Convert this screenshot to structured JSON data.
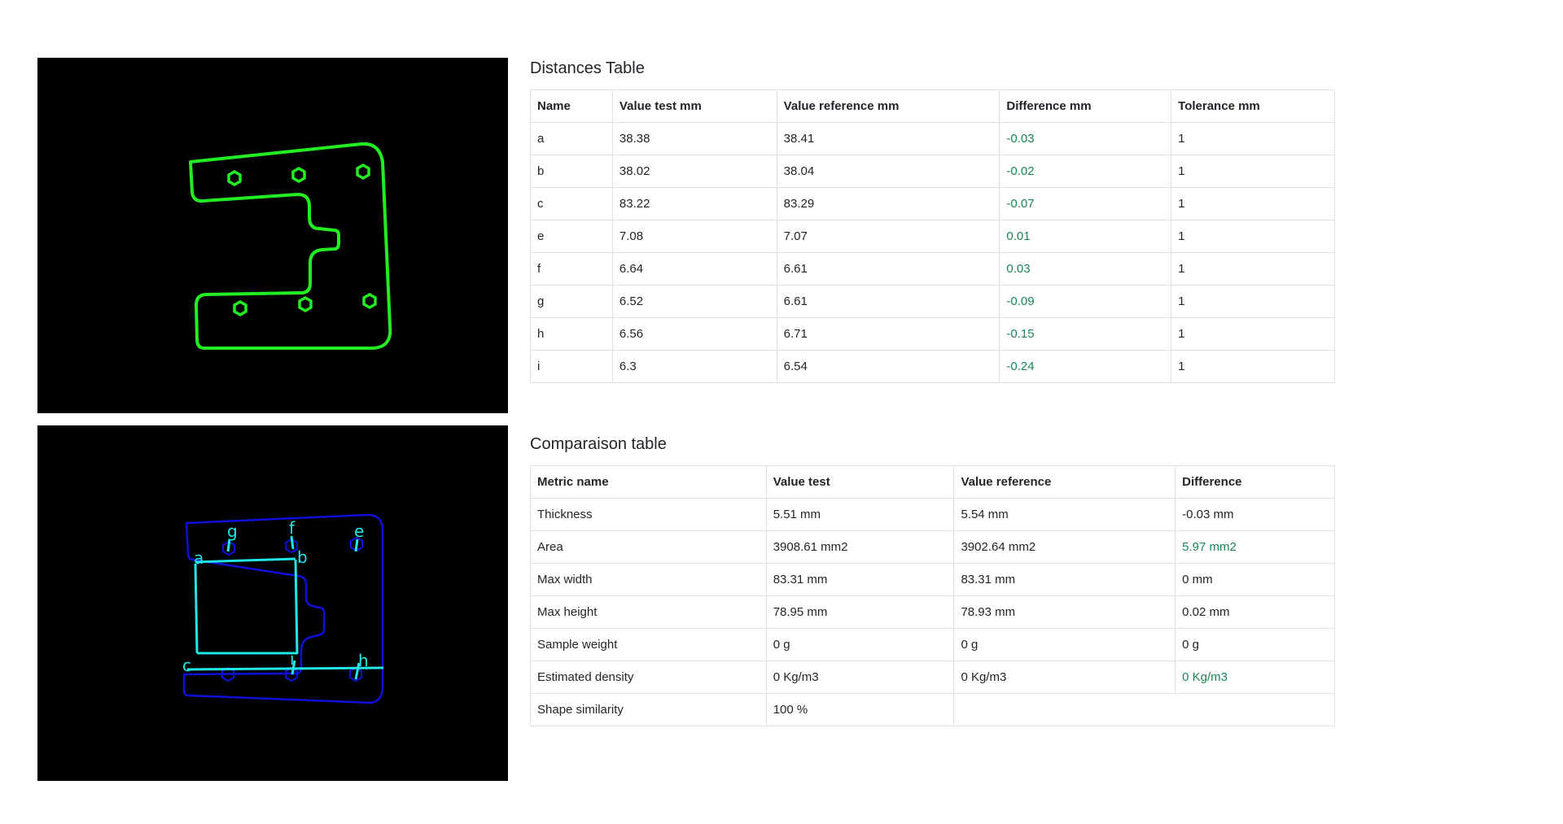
{
  "colors": {
    "contour_green": "#22ee22",
    "contour_blue": "#1010dd",
    "measure_cyan": "#22e5e5",
    "positive_green": "#198754"
  },
  "images": {
    "bottom_labels": [
      "a",
      "b",
      "c",
      "e",
      "f",
      "g",
      "h",
      "i"
    ]
  },
  "distances": {
    "title": "Distances Table",
    "headers": [
      "Name",
      "Value test mm",
      "Value reference mm",
      "Difference mm",
      "Tolerance mm"
    ],
    "rows": [
      {
        "name": "a",
        "test": "38.38",
        "ref": "38.41",
        "diff": "-0.03",
        "tol": "1"
      },
      {
        "name": "b",
        "test": "38.02",
        "ref": "38.04",
        "diff": "-0.02",
        "tol": "1"
      },
      {
        "name": "c",
        "test": "83.22",
        "ref": "83.29",
        "diff": "-0.07",
        "tol": "1"
      },
      {
        "name": "e",
        "test": "7.08",
        "ref": "7.07",
        "diff": "0.01",
        "tol": "1"
      },
      {
        "name": "f",
        "test": "6.64",
        "ref": "6.61",
        "diff": "0.03",
        "tol": "1"
      },
      {
        "name": "g",
        "test": "6.52",
        "ref": "6.61",
        "diff": "-0.09",
        "tol": "1"
      },
      {
        "name": "h",
        "test": "6.56",
        "ref": "6.71",
        "diff": "-0.15",
        "tol": "1"
      },
      {
        "name": "i",
        "test": "6.3",
        "ref": "6.54",
        "diff": "-0.24",
        "tol": "1"
      }
    ]
  },
  "comparison": {
    "title": "Comparaison table",
    "headers": [
      "Metric name",
      "Value test",
      "Value reference",
      "Difference"
    ],
    "rows": [
      {
        "metric": "Thickness",
        "test": "5.51 mm",
        "ref": "5.54 mm",
        "diff": "-0.03 mm"
      },
      {
        "metric": "Area",
        "test": "3908.61 mm2",
        "ref": "3902.64 mm2",
        "diff": "5.97 mm2"
      },
      {
        "metric": "Max width",
        "test": "83.31 mm",
        "ref": "83.31 mm",
        "diff": "0 mm"
      },
      {
        "metric": "Max height",
        "test": "78.95 mm",
        "ref": "78.93 mm",
        "diff": "0.02 mm"
      },
      {
        "metric": "Sample weight",
        "test": "0 g",
        "ref": "0 g",
        "diff": "0 g"
      },
      {
        "metric": "Estimated density",
        "test": "0 Kg/m3",
        "ref": "0 Kg/m3",
        "diff": "0 Kg/m3"
      },
      {
        "metric": "Shape similarity",
        "test": "100 %"
      }
    ]
  }
}
